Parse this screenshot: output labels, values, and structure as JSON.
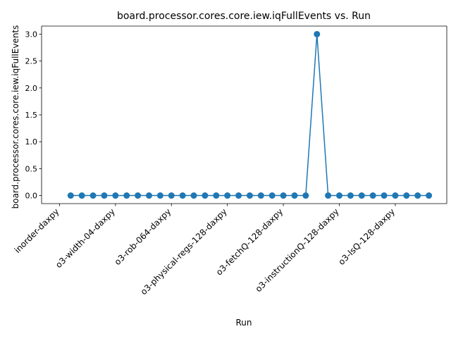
{
  "chart_data": {
    "type": "line",
    "title": "board.processor.cores.core.iew.iqFullEvents vs. Run",
    "xlabel": "Run",
    "ylabel": "board.processor.cores.core.iew.iqFullEvents",
    "ylim": [
      -0.15,
      3.15
    ],
    "yticks": [
      "0.0",
      "0.5",
      "1.0",
      "1.5",
      "2.0",
      "2.5",
      "3.0"
    ],
    "ytick_values": [
      0,
      0.5,
      1.0,
      1.5,
      2.0,
      2.5,
      3.0
    ],
    "xticks": [
      "inorder-daxpy",
      "o3-width-04-daxpy",
      "o3-rob-064-daxpy",
      "o3-physical-regs-128-daxpy",
      "o3-fetchQ-128-daxpy",
      "o3-instructionQ-128-daxpy",
      "o3-lsQ-128-daxpy"
    ],
    "xtick_positions": [
      -1,
      4,
      9,
      14,
      19,
      24,
      29
    ],
    "marker": "circle",
    "grid": false,
    "series": [
      {
        "color": "#1f77b4",
        "values": [
          0,
          0,
          0,
          0,
          0,
          0,
          0,
          0,
          0,
          0,
          0,
          0,
          0,
          0,
          0,
          0,
          0,
          0,
          0,
          0,
          0,
          0,
          3,
          0,
          0,
          0,
          0,
          0,
          0,
          0,
          0,
          0,
          0
        ]
      }
    ]
  }
}
